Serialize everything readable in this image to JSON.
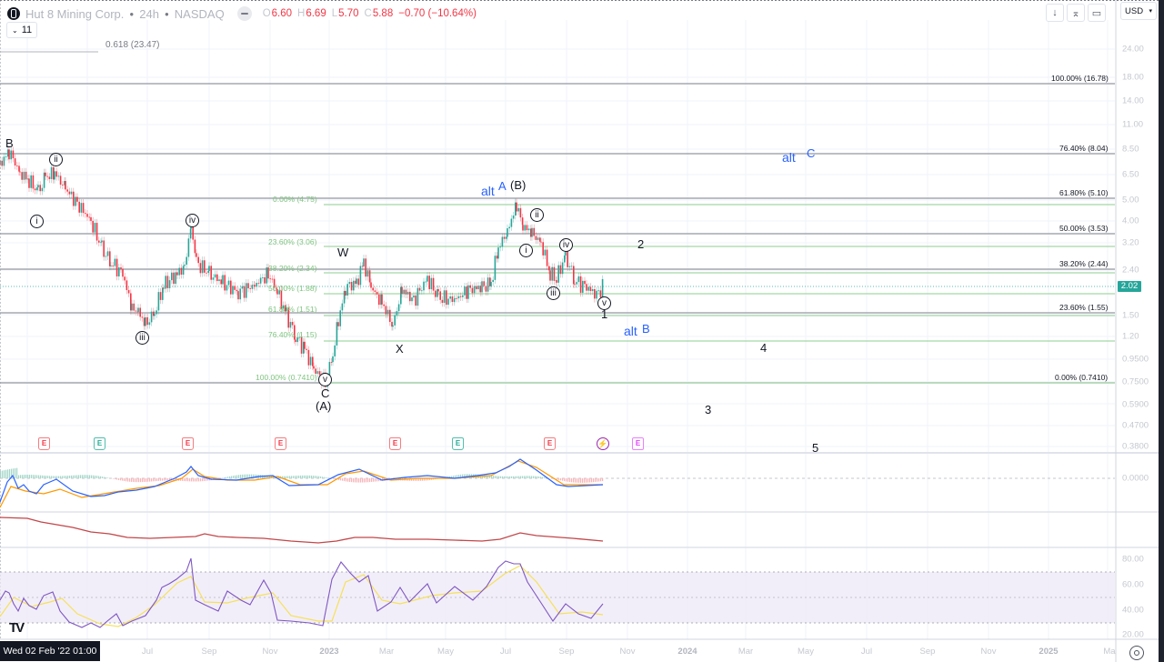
{
  "header": {
    "symbol_name": "Hut 8 Mining Corp.",
    "interval": "24h",
    "exchange": "NASDAQ",
    "ohlc": {
      "open_label": "O",
      "open": "6.60",
      "high_label": "H",
      "high": "6.69",
      "low_label": "L",
      "low": "5.70",
      "close_label": "C",
      "close": "5.88",
      "change": "−0.70 (−10.64%)"
    },
    "indicators_count": "11",
    "currency": "USD"
  },
  "toolbar": {
    "buttons": [
      {
        "icon": "arrow-down-icon",
        "glyph": "↓"
      },
      {
        "icon": "collapse-icon",
        "glyph": "⌅"
      },
      {
        "icon": "fullscreen-icon",
        "glyph": "▭"
      }
    ]
  },
  "price_axis": {
    "labels": [
      "24.00",
      "18.00",
      "14.00",
      "11.00",
      "8.50",
      "6.50",
      "5.00",
      "4.00",
      "3.20",
      "2.40",
      "1.50",
      "1.20",
      "0.9500",
      "0.7500",
      "0.5900",
      "0.4700",
      "0.3800"
    ],
    "current_price": "2.02",
    "macd_zero": "0.0000",
    "rsi_labels": [
      "80.00",
      "60.00",
      "40.00",
      "20.00"
    ]
  },
  "time_axis": {
    "labels": [
      {
        "text": "Jul",
        "year": false
      },
      {
        "text": "Sep",
        "year": false
      },
      {
        "text": "Nov",
        "year": false
      },
      {
        "text": "2023",
        "year": true
      },
      {
        "text": "Mar",
        "year": false
      },
      {
        "text": "May",
        "year": false
      },
      {
        "text": "Jul",
        "year": false
      },
      {
        "text": "Sep",
        "year": false
      },
      {
        "text": "Nov",
        "year": false
      },
      {
        "text": "2024",
        "year": true
      },
      {
        "text": "Mar",
        "year": false
      },
      {
        "text": "May",
        "year": false
      },
      {
        "text": "Jul",
        "year": false
      },
      {
        "text": "Sep",
        "year": false
      },
      {
        "text": "Nov",
        "year": false
      },
      {
        "text": "2025",
        "year": true
      },
      {
        "text": "Ma",
        "year": false
      }
    ],
    "cursor_date": "Wed 02 Feb '22  01:00"
  },
  "fib_top_label": "0.618 (23.47)",
  "chart_data": [
    {
      "type": "candlestick",
      "title": "Hut 8 Mining Corp. · 24h · NASDAQ",
      "y_scale": "log",
      "ylim": [
        0.38,
        24.0
      ],
      "x_range": [
        "2022-02",
        "2025-03"
      ],
      "last_price": 2.02,
      "key_swings": [
        {
          "date": "2022-02",
          "price": 8.3,
          "label": "B"
        },
        {
          "date": "2022-03",
          "price": 5.4,
          "label": "(i)"
        },
        {
          "date": "2022-04",
          "price": 6.6,
          "label": "(ii)"
        },
        {
          "date": "2022-07",
          "price": 1.35,
          "label": "(iii)"
        },
        {
          "date": "2022-08",
          "price": 3.8,
          "label": "(iv)"
        },
        {
          "date": "2022-12",
          "price": 0.741,
          "label": "(v) C (A)"
        },
        {
          "date": "2023-02",
          "price": 2.6,
          "label": "W"
        },
        {
          "date": "2023-03",
          "price": 1.25,
          "label": "X"
        },
        {
          "date": "2023-07",
          "price": 4.75,
          "label": "alt A (B)"
        },
        {
          "date": "2023-08",
          "price": 3.7,
          "label": "(ii)"
        },
        {
          "date": "2023-08",
          "price": 3.4,
          "label": "(i)"
        },
        {
          "date": "2023-08",
          "price": 2.1,
          "label": "(iii)"
        },
        {
          "date": "2023-09",
          "price": 2.8,
          "label": "(iv)"
        },
        {
          "date": "2023-10",
          "price": 1.9,
          "label": "(v) 1"
        }
      ],
      "fib_retracement_left": [
        {
          "level": "0.00%",
          "price": 4.75
        },
        {
          "level": "23.60%",
          "price": 3.06
        },
        {
          "level": "38.20%",
          "price": 2.34
        },
        {
          "level": "50.00%",
          "price": 1.88
        },
        {
          "level": "61.80%",
          "price": 1.51
        },
        {
          "level": "76.40%",
          "price": 1.15
        },
        {
          "level": "100.00%",
          "price": 0.741
        }
      ],
      "fib_extension_right": [
        {
          "level": "100.00%",
          "price": 16.78
        },
        {
          "level": "76.40%",
          "price": 8.04
        },
        {
          "level": "61.80%",
          "price": 5.1
        },
        {
          "level": "50.00%",
          "price": 3.53
        },
        {
          "level": "38.20%",
          "price": 2.44
        },
        {
          "level": "23.60%",
          "price": 1.55
        },
        {
          "level": "0.00%",
          "price": 0.741
        }
      ],
      "projection_labels": [
        "2",
        "3",
        "4",
        "5",
        "alt B",
        "alt C"
      ]
    },
    {
      "type": "line",
      "title": "MACD",
      "series": [
        {
          "name": "MACD",
          "color": "#2962ff"
        },
        {
          "name": "Signal",
          "color": "#ff9800"
        }
      ],
      "zero_line": "0.0000"
    },
    {
      "type": "line",
      "title": "Relative strength line",
      "series": [
        {
          "name": "RS",
          "color": "#c2474a"
        }
      ]
    },
    {
      "type": "line",
      "title": "RSI",
      "series": [
        {
          "name": "RSI",
          "color": "#7e57c2"
        },
        {
          "name": "RSI MA",
          "color": "#f5e15a"
        }
      ],
      "ylim": [
        20,
        80
      ],
      "bands": [
        30,
        50,
        70
      ]
    }
  ],
  "wave_labels": {
    "B": "B",
    "i_top": "i",
    "ii_top": "ii",
    "iii": "iii",
    "iv": "iv",
    "v_bottom": "v",
    "C": "C",
    "A_paren": "(A)",
    "W": "W",
    "X": "X",
    "alt": "alt",
    "A": "A",
    "B_paren": "(B)",
    "ii_b": "ii",
    "i_b": "i",
    "iv_b": "iv",
    "iii_b": "iii",
    "v_b": "v",
    "one": "1",
    "two": "2",
    "three": "3",
    "four": "4",
    "five": "5",
    "alt_b_alt": "alt",
    "alt_b_B": "B",
    "alt_c_alt": "alt",
    "alt_c_C": "C"
  },
  "fib_right_labels": {
    "l100": "100.00% (16.78)",
    "l764": "76.40% (8.04)",
    "l618": "61.80% (5.10)",
    "l50": "50.00% (3.53)",
    "l382": "38.20% (2.44)",
    "l236": "23.60% (1.55)",
    "l0": "0.00% (0.7410)"
  },
  "fib_left_labels": {
    "l0": "0.00% (4.75)",
    "l236": "23.60% (3.06)",
    "l382": "38.20% (2.34)",
    "l50": "50.00% (1.88)",
    "l618": "61.80% (1.51)",
    "l764": "76.40% (1.15)",
    "l100": "100.00% (0.7410)"
  },
  "events": {
    "earnings_label": "E",
    "dividend_label": "⚡"
  }
}
